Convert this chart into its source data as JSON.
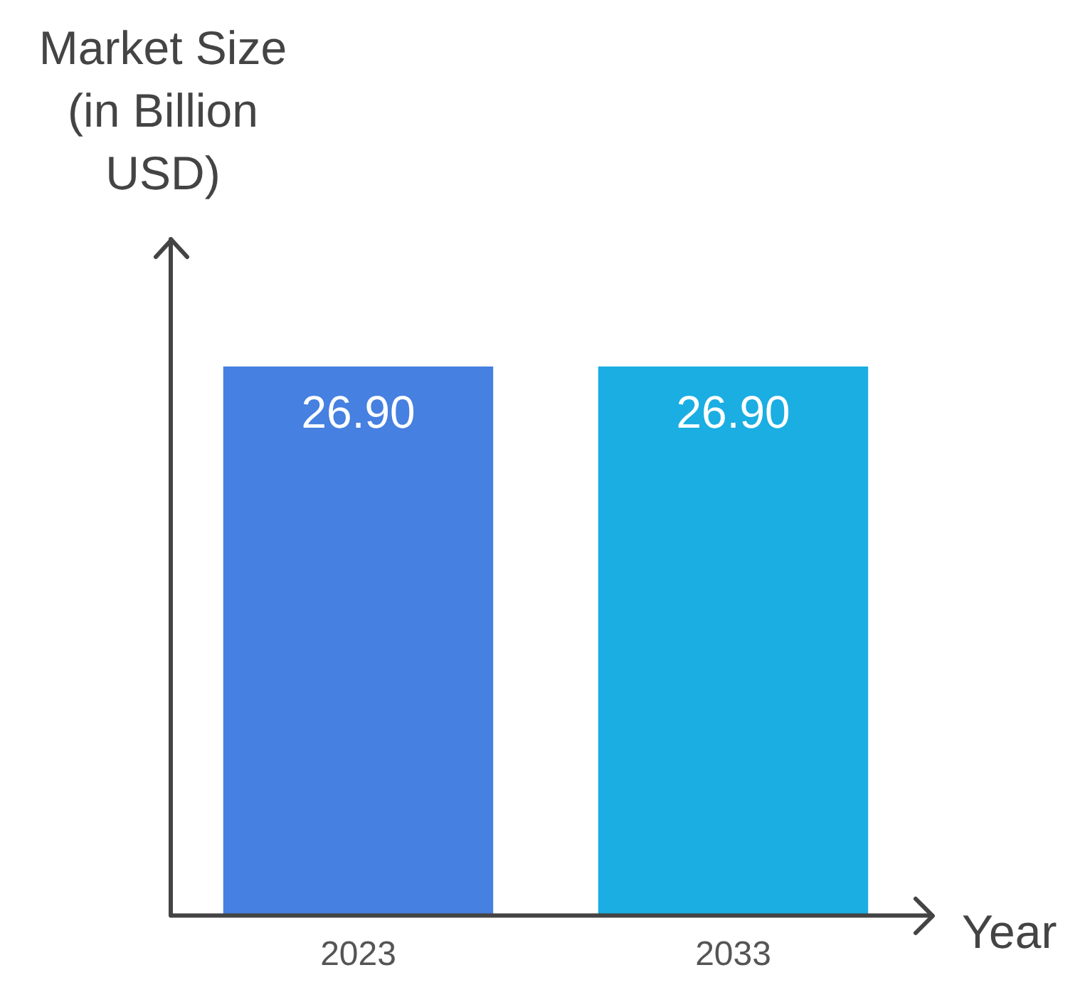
{
  "chart_data": {
    "type": "bar",
    "ylabel": "Market Size (in Billion USD)",
    "xlabel": "Year",
    "categories": [
      "2023",
      "2033"
    ],
    "values": [
      26.9,
      26.9
    ],
    "colors": [
      "#4680e0",
      "#1aaee2"
    ],
    "data_labels": true,
    "value_labels": [
      "26.90",
      "26.90"
    ],
    "grid": false,
    "legend": false
  }
}
